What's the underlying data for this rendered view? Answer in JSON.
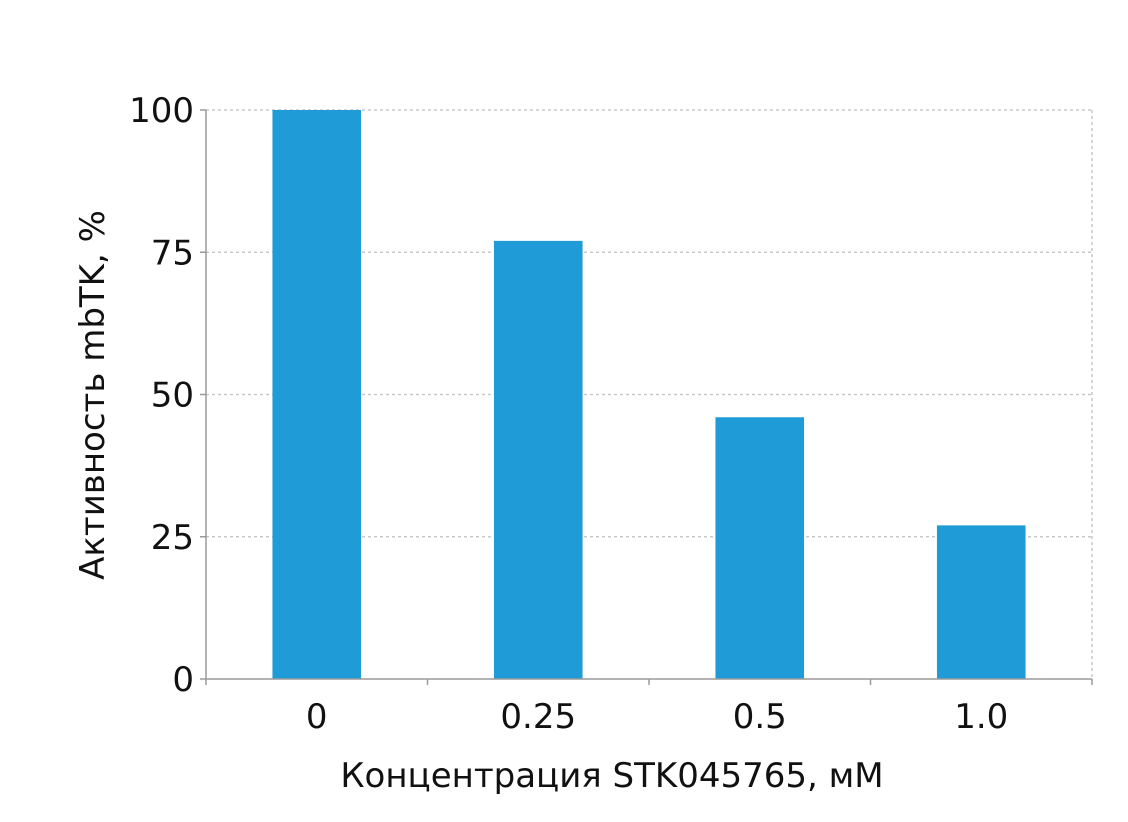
{
  "chart_data": {
    "type": "bar",
    "title": "",
    "categories": [
      "0",
      "0.25",
      "0.5",
      "1.0"
    ],
    "values": [
      100,
      77,
      46,
      27
    ],
    "xlabel": "Концентрация STK045765, мМ",
    "ylabel": "Активность mbTK, %",
    "ylim": [
      0,
      100
    ],
    "yticks": [
      "0",
      "25",
      "50",
      "75",
      "100"
    ],
    "grid": true,
    "bar_color": "#1f9bd7",
    "grid_color": "#c8c8c8"
  }
}
